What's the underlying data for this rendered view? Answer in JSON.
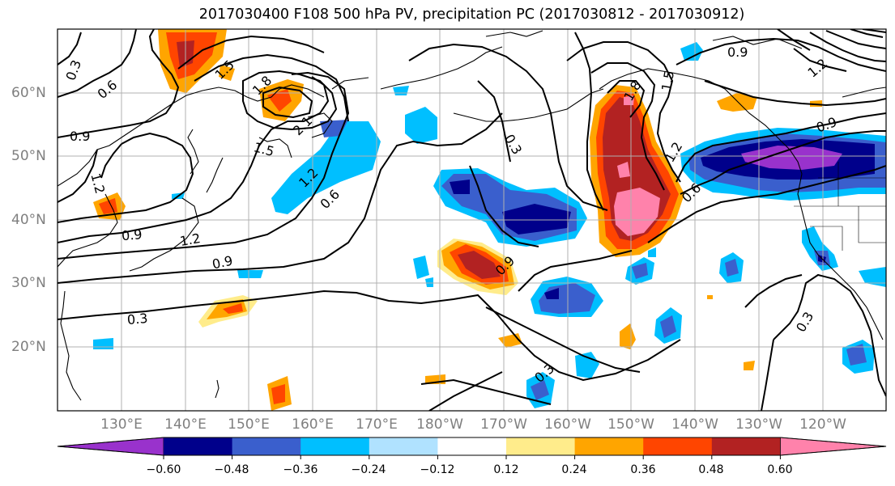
{
  "title": "2017030400 F108 500 hPa PV, precipitation PC (2017030812 - 2017030912)",
  "map": {
    "lat_labels": [
      "60°N",
      "50°N",
      "40°N",
      "30°N",
      "20°N"
    ],
    "lon_labels": [
      "130°E",
      "140°E",
      "150°E",
      "160°E",
      "170°E",
      "180°W",
      "170°W",
      "160°W",
      "150°W",
      "140°W",
      "130°W",
      "120°W"
    ],
    "contour_labels": [
      "0.3",
      "0.6",
      "0.9",
      "1.2",
      "1.5",
      "1.8",
      "2.1",
      "0.9",
      "1.2",
      "0.9",
      "0.3",
      "1.5",
      "1.2",
      "0.6",
      "0.9",
      "0.3",
      "1.5",
      "1.8",
      "1.2",
      "0.6",
      "0.9",
      "0.9",
      "0.3",
      "0.3",
      "1.2"
    ]
  },
  "colorbar": {
    "colors": [
      "#9932cc",
      "#00008b",
      "#3a5fcd",
      "#00bfff",
      "#b0e2ff",
      "#ffffff",
      "#ffec8b",
      "#ffa500",
      "#ff4500",
      "#b22222",
      "#ff82ab"
    ],
    "tick_labels": [
      "−0.60",
      "−0.48",
      "−0.36",
      "−0.24",
      "−0.12",
      "0.12",
      "0.24",
      "0.36",
      "0.48",
      "0.60"
    ]
  }
}
